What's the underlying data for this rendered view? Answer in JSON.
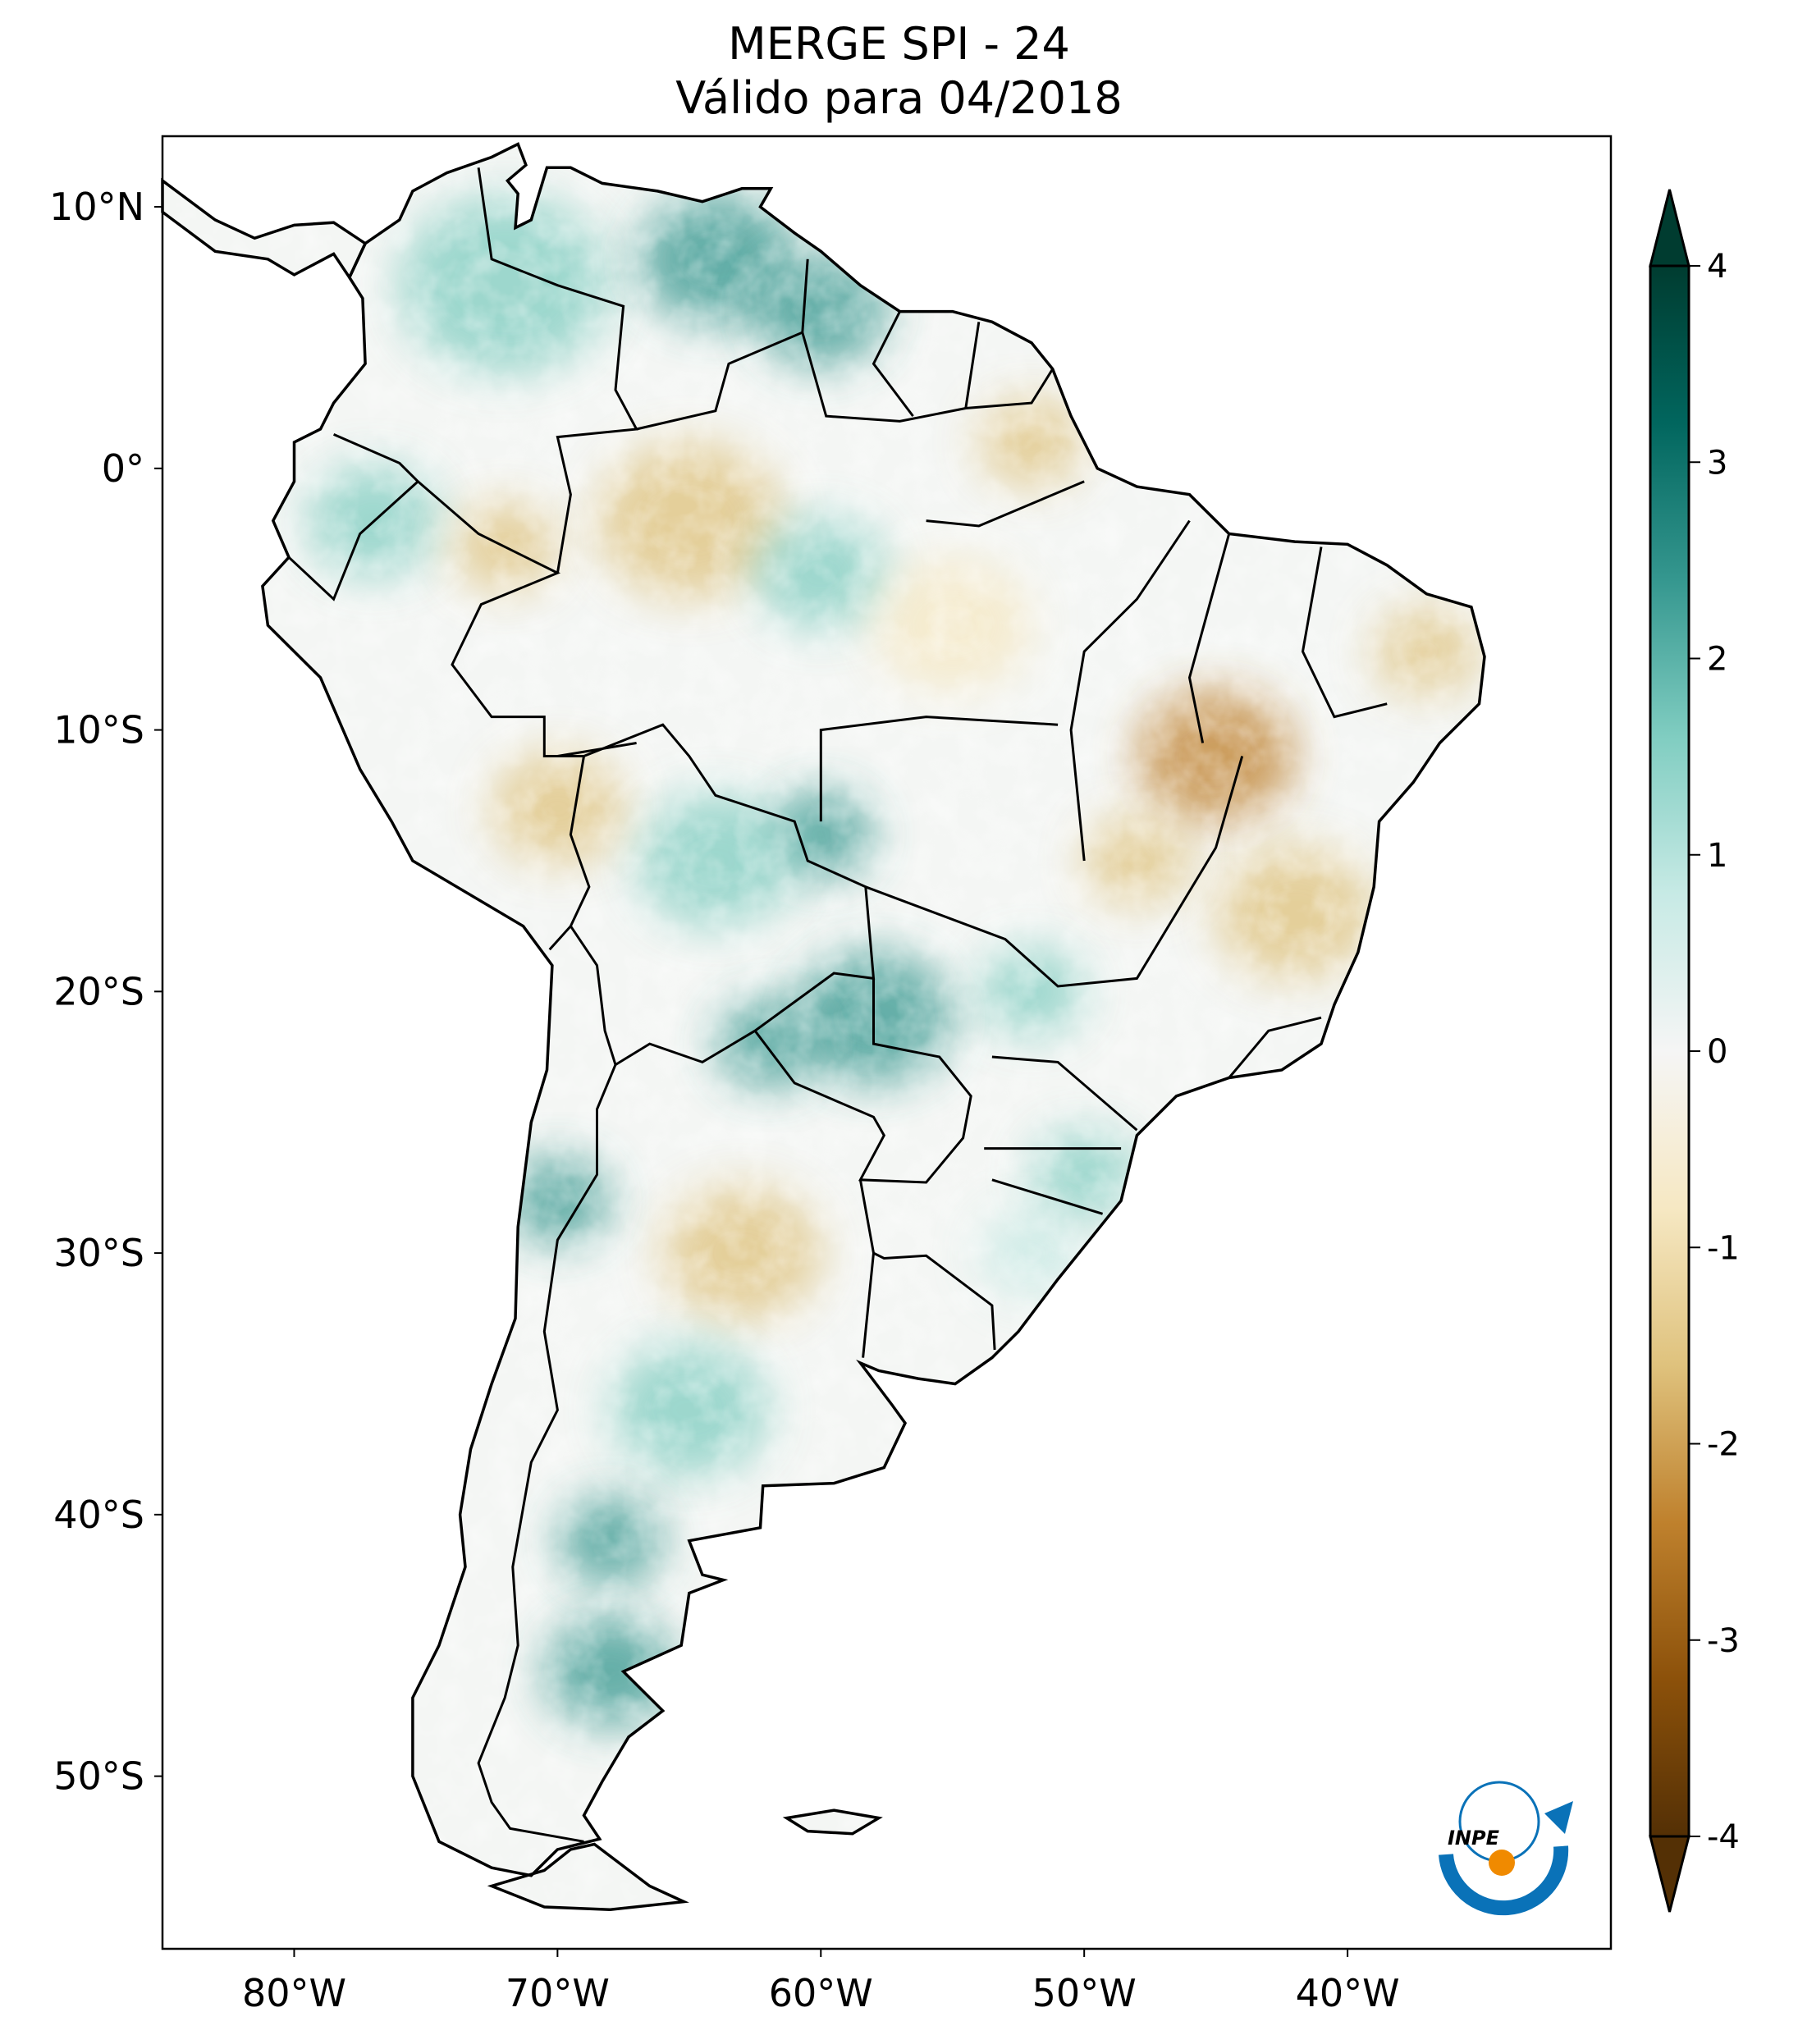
{
  "chart_data": {
    "type": "heatmap",
    "title": "MERGE   SPI - 24",
    "subtitle": "Válido para 04/2018",
    "xlim": [
      -85,
      -30
    ],
    "ylim": [
      -56.6,
      12.7
    ],
    "x_ticks": [
      -80,
      -70,
      -60,
      -50,
      -40
    ],
    "x_tick_labels": [
      "80°W",
      "70°W",
      "60°W",
      "50°W",
      "40°W"
    ],
    "y_ticks": [
      10,
      0,
      -10,
      -20,
      -30,
      -40,
      -50
    ],
    "y_tick_labels": [
      "10°N",
      "0°",
      "10°S",
      "20°S",
      "30°S",
      "40°S",
      "50°S"
    ],
    "colorbar": {
      "range": [
        -4,
        4
      ],
      "extend": "both",
      "ticks": [
        4,
        3,
        2,
        1,
        0,
        -1,
        -2,
        -3,
        -4
      ],
      "tick_labels": [
        "4",
        "3",
        "2",
        "1",
        "0",
        "-1",
        "-2",
        "-3",
        "-4"
      ],
      "colormap": "BrBG",
      "colors": [
        "#543005",
        "#8c510a",
        "#bf812d",
        "#dfc27d",
        "#f6e8c3",
        "#f5f5f5",
        "#c7eae5",
        "#80cdc1",
        "#35978f",
        "#01665e",
        "#003c30"
      ]
    },
    "grid": false
  },
  "logo": {
    "text": "INPE",
    "colors": [
      "#0a72b8",
      "#f08a00"
    ]
  }
}
